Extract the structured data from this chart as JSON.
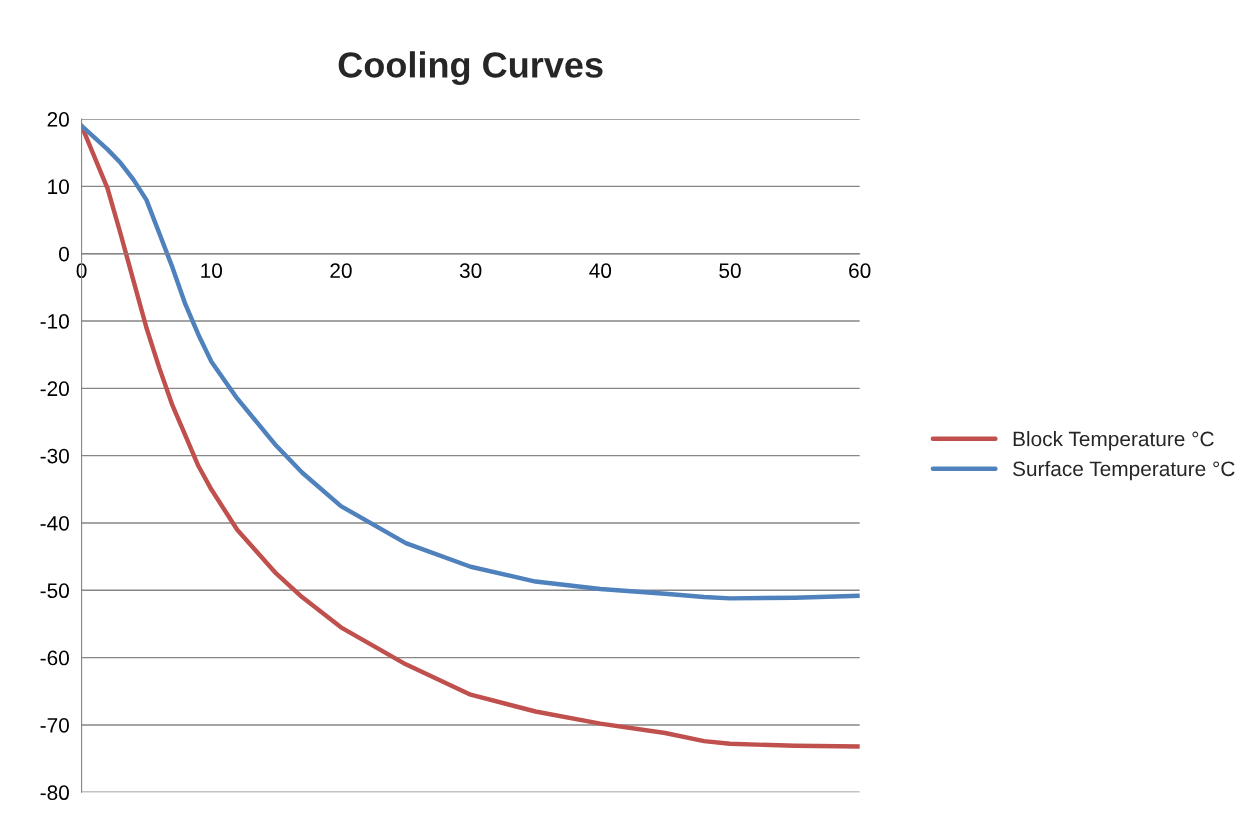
{
  "chart_data": {
    "type": "line",
    "title": "Cooling Curves",
    "x": [
      0,
      2,
      3,
      4,
      5,
      6,
      7,
      8,
      9,
      10,
      12,
      15,
      17,
      20,
      25,
      30,
      35,
      40,
      45,
      48,
      50,
      55,
      60
    ],
    "series": [
      {
        "name": "Block Temperature °C",
        "color": "#c0504d",
        "values": [
          19,
          9.7,
          3,
          -4,
          -11,
          -17,
          -22.5,
          -27,
          -31.5,
          -35,
          -41,
          -47.5,
          -51,
          -55.5,
          -61,
          -65.5,
          -68,
          -69.8,
          -71.2,
          -72.4,
          -72.8,
          -73.1,
          -73.2
        ]
      },
      {
        "name": "Surface Temperature °C",
        "color": "#4f81bd",
        "values": [
          19,
          15.5,
          13.5,
          11,
          8,
          3,
          -2,
          -7.5,
          -12,
          -16,
          -21.5,
          -28.5,
          -32.5,
          -37.5,
          -43,
          -46.5,
          -48.7,
          -49.8,
          -50.5,
          -51,
          -51.2,
          -51.1,
          -50.8
        ]
      }
    ],
    "xlim": [
      0,
      60
    ],
    "xticks": [
      0,
      10,
      20,
      30,
      40,
      50,
      60
    ],
    "ylim": [
      -80,
      20
    ],
    "yticks": [
      -80,
      -70,
      -60,
      -50,
      -40,
      -30,
      -20,
      -10,
      0,
      10,
      20
    ],
    "grid": "y",
    "legend": "right"
  }
}
